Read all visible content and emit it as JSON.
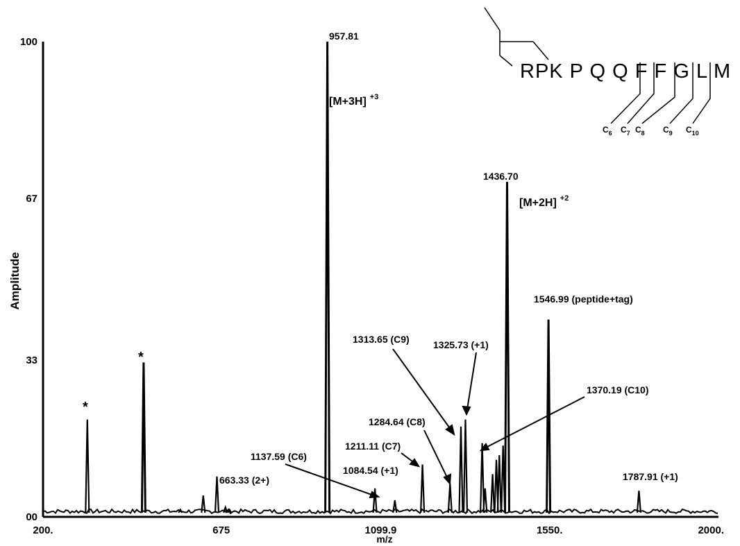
{
  "chart_data": {
    "type": "line",
    "title": "",
    "xlabel": "m/z",
    "ylabel": "Amplitude",
    "xlim": [
      200,
      2000
    ],
    "ylim": [
      0,
      100
    ],
    "xticks": [
      "200.",
      "675",
      "1099.9",
      "1550.",
      "2000."
    ],
    "xtick_values": [
      200,
      675,
      1099.9,
      1550,
      2000
    ],
    "yticks": [
      "00",
      "33",
      "67",
      "100"
    ],
    "ytick_values": [
      0,
      33,
      67,
      100
    ],
    "grid": false,
    "peaks": [
      {
        "mz": 318,
        "intensity": 20.5
      },
      {
        "mz": 468,
        "intensity": 32.5
      },
      {
        "mz": 566,
        "intensity": 1.5
      },
      {
        "mz": 627,
        "intensity": 4.5
      },
      {
        "mz": 663.33,
        "intensity": 8.5
      },
      {
        "mz": 686,
        "intensity": 2.0
      },
      {
        "mz": 697,
        "intensity": 1.5
      },
      {
        "mz": 957.81,
        "intensity": 100
      },
      {
        "mz": 1084.54,
        "intensity": 6.0
      },
      {
        "mz": 1137.59,
        "intensity": 3.5
      },
      {
        "mz": 1211.11,
        "intensity": 11.0
      },
      {
        "mz": 1284.64,
        "intensity": 7.0
      },
      {
        "mz": 1313.65,
        "intensity": 19.0
      },
      {
        "mz": 1325.73,
        "intensity": 20.5
      },
      {
        "mz": 1370.19,
        "intensity": 15.5
      },
      {
        "mz": 1378,
        "intensity": 6.0
      },
      {
        "mz": 1398,
        "intensity": 9.0
      },
      {
        "mz": 1408,
        "intensity": 12.0
      },
      {
        "mz": 1416,
        "intensity": 13.0
      },
      {
        "mz": 1426,
        "intensity": 15.0
      },
      {
        "mz": 1436.7,
        "intensity": 70.5
      },
      {
        "mz": 1546.99,
        "intensity": 41.5
      },
      {
        "mz": 1787.91,
        "intensity": 5.5
      }
    ],
    "annotations": [
      {
        "text": "957.81"
      },
      {
        "text": "1436.70"
      },
      {
        "text": "1546.99 (peptide+tag)"
      },
      {
        "text": "1313.65 (C9)"
      },
      {
        "text": "1325.73 (+1)"
      },
      {
        "text": "1370.19 (C10)"
      },
      {
        "text": "1284.64 (C8)"
      },
      {
        "text": "1211.11 (C7)"
      },
      {
        "text": "1137.59 (C6)"
      },
      {
        "text": "1084.54 (+1)"
      },
      {
        "text": "663.33 (2+)"
      },
      {
        "text": "1787.91 (+1)"
      },
      {
        "text": "*"
      },
      {
        "text": "*"
      }
    ],
    "ion_labels": [
      {
        "base": "[M+3H]",
        "charge": "+3"
      },
      {
        "base": "[M+2H]",
        "charge": "+2"
      }
    ],
    "sequence": "RPK P Q Q F F G L M",
    "fragments": [
      {
        "base": "C",
        "sub": "6"
      },
      {
        "base": "C",
        "sub": "7"
      },
      {
        "base": "C",
        "sub": "8"
      },
      {
        "base": "C",
        "sub": "9"
      },
      {
        "base": "C",
        "sub": "10"
      }
    ]
  }
}
